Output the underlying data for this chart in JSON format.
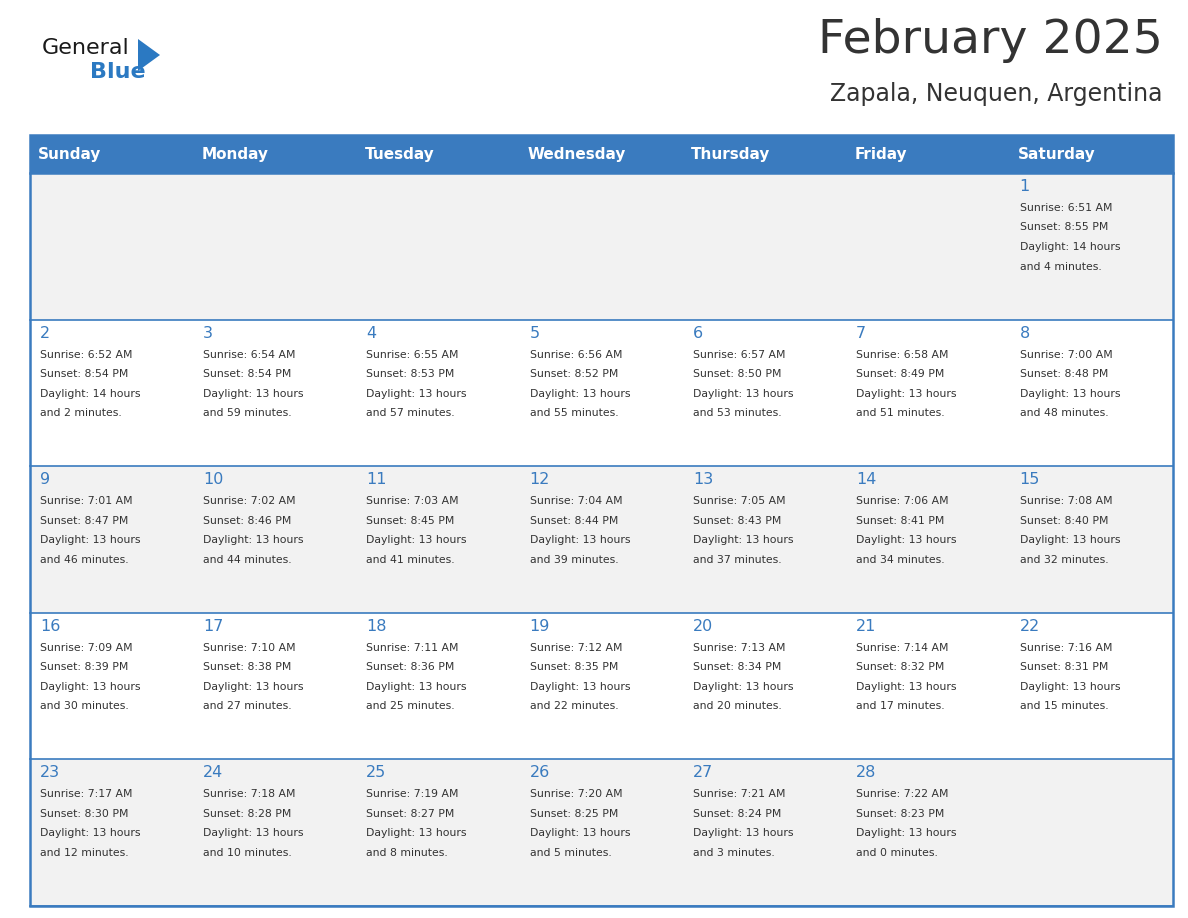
{
  "title": "February 2025",
  "subtitle": "Zapala, Neuquen, Argentina",
  "days_of_week": [
    "Sunday",
    "Monday",
    "Tuesday",
    "Wednesday",
    "Thursday",
    "Friday",
    "Saturday"
  ],
  "header_bg": "#3a7bbf",
  "header_text": "#ffffff",
  "cell_bg_light": "#f2f2f2",
  "cell_bg_white": "#ffffff",
  "grid_line_color": "#3a7bbf",
  "text_color_dark": "#333333",
  "text_color_day": "#3a7bbf",
  "logo_general_color": "#1a1a1a",
  "logo_blue_color": "#2b79c2",
  "calendar_data": [
    [
      {
        "day": null,
        "info": ""
      },
      {
        "day": null,
        "info": ""
      },
      {
        "day": null,
        "info": ""
      },
      {
        "day": null,
        "info": ""
      },
      {
        "day": null,
        "info": ""
      },
      {
        "day": null,
        "info": ""
      },
      {
        "day": 1,
        "info": "Sunrise: 6:51 AM\nSunset: 8:55 PM\nDaylight: 14 hours\nand 4 minutes."
      }
    ],
    [
      {
        "day": 2,
        "info": "Sunrise: 6:52 AM\nSunset: 8:54 PM\nDaylight: 14 hours\nand 2 minutes."
      },
      {
        "day": 3,
        "info": "Sunrise: 6:54 AM\nSunset: 8:54 PM\nDaylight: 13 hours\nand 59 minutes."
      },
      {
        "day": 4,
        "info": "Sunrise: 6:55 AM\nSunset: 8:53 PM\nDaylight: 13 hours\nand 57 minutes."
      },
      {
        "day": 5,
        "info": "Sunrise: 6:56 AM\nSunset: 8:52 PM\nDaylight: 13 hours\nand 55 minutes."
      },
      {
        "day": 6,
        "info": "Sunrise: 6:57 AM\nSunset: 8:50 PM\nDaylight: 13 hours\nand 53 minutes."
      },
      {
        "day": 7,
        "info": "Sunrise: 6:58 AM\nSunset: 8:49 PM\nDaylight: 13 hours\nand 51 minutes."
      },
      {
        "day": 8,
        "info": "Sunrise: 7:00 AM\nSunset: 8:48 PM\nDaylight: 13 hours\nand 48 minutes."
      }
    ],
    [
      {
        "day": 9,
        "info": "Sunrise: 7:01 AM\nSunset: 8:47 PM\nDaylight: 13 hours\nand 46 minutes."
      },
      {
        "day": 10,
        "info": "Sunrise: 7:02 AM\nSunset: 8:46 PM\nDaylight: 13 hours\nand 44 minutes."
      },
      {
        "day": 11,
        "info": "Sunrise: 7:03 AM\nSunset: 8:45 PM\nDaylight: 13 hours\nand 41 minutes."
      },
      {
        "day": 12,
        "info": "Sunrise: 7:04 AM\nSunset: 8:44 PM\nDaylight: 13 hours\nand 39 minutes."
      },
      {
        "day": 13,
        "info": "Sunrise: 7:05 AM\nSunset: 8:43 PM\nDaylight: 13 hours\nand 37 minutes."
      },
      {
        "day": 14,
        "info": "Sunrise: 7:06 AM\nSunset: 8:41 PM\nDaylight: 13 hours\nand 34 minutes."
      },
      {
        "day": 15,
        "info": "Sunrise: 7:08 AM\nSunset: 8:40 PM\nDaylight: 13 hours\nand 32 minutes."
      }
    ],
    [
      {
        "day": 16,
        "info": "Sunrise: 7:09 AM\nSunset: 8:39 PM\nDaylight: 13 hours\nand 30 minutes."
      },
      {
        "day": 17,
        "info": "Sunrise: 7:10 AM\nSunset: 8:38 PM\nDaylight: 13 hours\nand 27 minutes."
      },
      {
        "day": 18,
        "info": "Sunrise: 7:11 AM\nSunset: 8:36 PM\nDaylight: 13 hours\nand 25 minutes."
      },
      {
        "day": 19,
        "info": "Sunrise: 7:12 AM\nSunset: 8:35 PM\nDaylight: 13 hours\nand 22 minutes."
      },
      {
        "day": 20,
        "info": "Sunrise: 7:13 AM\nSunset: 8:34 PM\nDaylight: 13 hours\nand 20 minutes."
      },
      {
        "day": 21,
        "info": "Sunrise: 7:14 AM\nSunset: 8:32 PM\nDaylight: 13 hours\nand 17 minutes."
      },
      {
        "day": 22,
        "info": "Sunrise: 7:16 AM\nSunset: 8:31 PM\nDaylight: 13 hours\nand 15 minutes."
      }
    ],
    [
      {
        "day": 23,
        "info": "Sunrise: 7:17 AM\nSunset: 8:30 PM\nDaylight: 13 hours\nand 12 minutes."
      },
      {
        "day": 24,
        "info": "Sunrise: 7:18 AM\nSunset: 8:28 PM\nDaylight: 13 hours\nand 10 minutes."
      },
      {
        "day": 25,
        "info": "Sunrise: 7:19 AM\nSunset: 8:27 PM\nDaylight: 13 hours\nand 8 minutes."
      },
      {
        "day": 26,
        "info": "Sunrise: 7:20 AM\nSunset: 8:25 PM\nDaylight: 13 hours\nand 5 minutes."
      },
      {
        "day": 27,
        "info": "Sunrise: 7:21 AM\nSunset: 8:24 PM\nDaylight: 13 hours\nand 3 minutes."
      },
      {
        "day": 28,
        "info": "Sunrise: 7:22 AM\nSunset: 8:23 PM\nDaylight: 13 hours\nand 0 minutes."
      },
      {
        "day": null,
        "info": ""
      }
    ]
  ],
  "fig_width": 11.88,
  "fig_height": 9.18,
  "dpi": 100
}
